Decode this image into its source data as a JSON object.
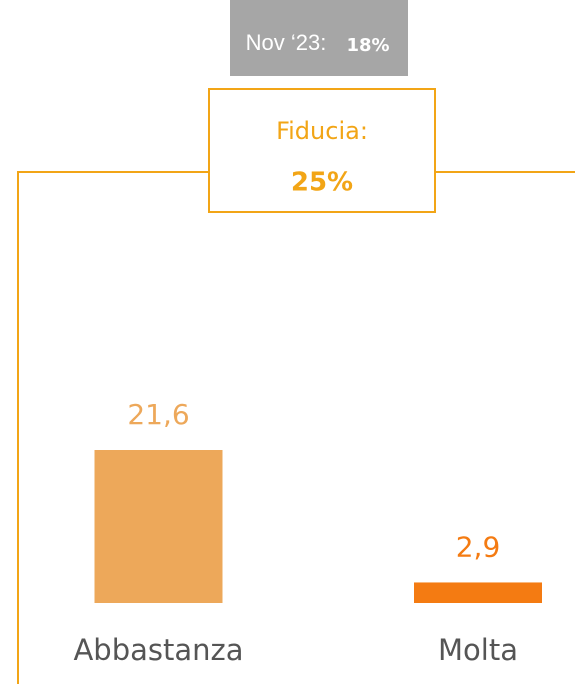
{
  "chart_data": {
    "type": "bar",
    "annotations": {
      "previous_label": "Nov ‘23:",
      "previous_value": "18%",
      "current_label": "Fiducia:",
      "current_value": "25%"
    },
    "categories": [
      "Abbastanza",
      "Molta"
    ],
    "values": [
      21.6,
      2.9
    ],
    "value_labels": [
      "21,6",
      "2,9"
    ],
    "colors": [
      "#eda85a",
      "#f47b12"
    ]
  }
}
